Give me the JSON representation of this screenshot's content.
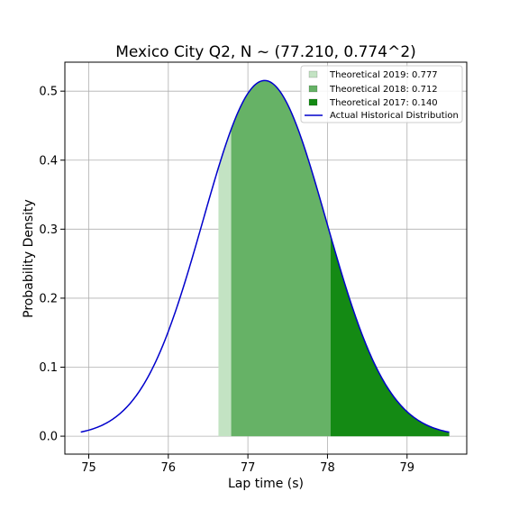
{
  "chart_data": {
    "type": "area",
    "title": "Mexico City Q2, N ~ (77.210, 0.774^2)",
    "xlabel": "Lap time (s)",
    "ylabel": "Probability Density",
    "xlim": [
      74.7,
      79.75
    ],
    "ylim": [
      -0.026,
      0.542
    ],
    "xticks": [
      "75",
      "76",
      "77",
      "78",
      "79"
    ],
    "yticks": [
      "0.0",
      "0.1",
      "0.2",
      "0.3",
      "0.4",
      "0.5"
    ],
    "grid": true,
    "legend_position": "top-right",
    "distribution": {
      "name": "Actual Historical Distribution",
      "color": "#0000cc",
      "mean": 77.21,
      "std": 0.774,
      "x_range": [
        74.9,
        79.53
      ]
    },
    "series": [
      {
        "name": "Theoretical 2019: 0.777",
        "color": "#c3e3c3",
        "x_range": [
          76.63,
          79.53
        ]
      },
      {
        "name": "Theoretical 2018: 0.712",
        "color": "#66b266",
        "x_range": [
          76.79,
          79.53
        ]
      },
      {
        "name": "Theoretical 2017: 0.140",
        "color": "#148a14",
        "x_range": [
          78.04,
          79.53
        ]
      }
    ]
  }
}
